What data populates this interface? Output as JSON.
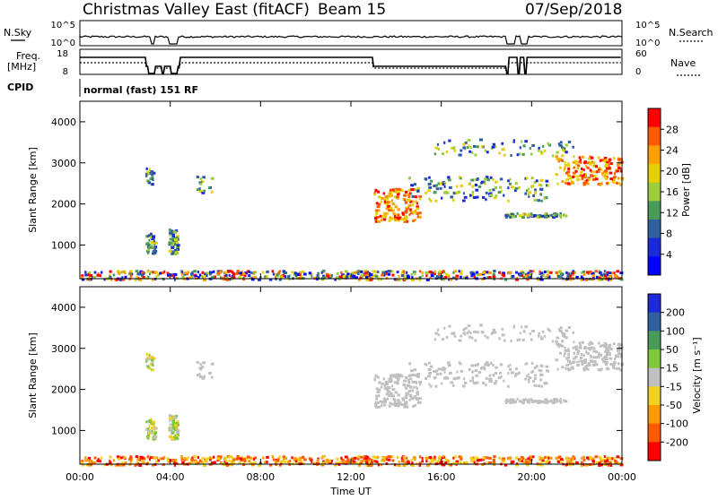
{
  "header": {
    "station": "Christmas Valley East (fitACF)",
    "beam": "Beam 15",
    "date": "07/Sep/2018"
  },
  "top_panels": {
    "nsky_label": "N.Sky",
    "nsky_ticks": [
      "10^5",
      "10^0"
    ],
    "nsearch_label": "N.Search",
    "nsearch_ticks": [
      "10^5",
      "10^0"
    ],
    "freq_label_1": "Freq.",
    "freq_label_2": "[MHz]",
    "freq_ticks": [
      "18",
      "8"
    ],
    "nave_label": "Nave",
    "nave_ticks": [
      "60",
      "0"
    ],
    "cpid_label": "CPID",
    "cpid_text": "normal (fast) 151 RF"
  },
  "chart_data": [
    {
      "type": "heatmap",
      "name": "power",
      "ylabel": "Slant Range [km]",
      "yticks": [
        "4000",
        "3000",
        "2000",
        "1000"
      ],
      "ylim": [
        180,
        4500
      ],
      "colorbar_label": "Power [dB]",
      "colorbar_ticks": [
        "28",
        "24",
        "20",
        "16",
        "12",
        "8",
        "4"
      ],
      "colorbar_colors": [
        "#ff0000",
        "#ff5a00",
        "#ffa000",
        "#e6d000",
        "#9ccd3c",
        "#4a9a5a",
        "#2e5fa0",
        "#1a2ad8",
        "#0000ff"
      ]
    },
    {
      "type": "heatmap",
      "name": "velocity",
      "ylabel": "Slant Range [km]",
      "yticks": [
        "4000",
        "3000",
        "2000",
        "1000"
      ],
      "ylim": [
        180,
        4500
      ],
      "colorbar_label": "Velocity [m s⁻¹]",
      "colorbar_ticks": [
        "200",
        "100",
        "50",
        "15",
        "-15",
        "-50",
        "-100",
        "-200"
      ],
      "colorbar_colors": [
        "#1e2ad8",
        "#2e5fa0",
        "#4a9a5a",
        "#7ec83a",
        "#c0c0c0",
        "#f2d020",
        "#ff9a00",
        "#ff5a00",
        "#ff0000"
      ]
    }
  ],
  "xaxis": {
    "ticks": [
      "00:00",
      "04:00",
      "08:00",
      "12:00",
      "16:00",
      "20:00",
      "00:00"
    ],
    "label": "Time UT"
  }
}
